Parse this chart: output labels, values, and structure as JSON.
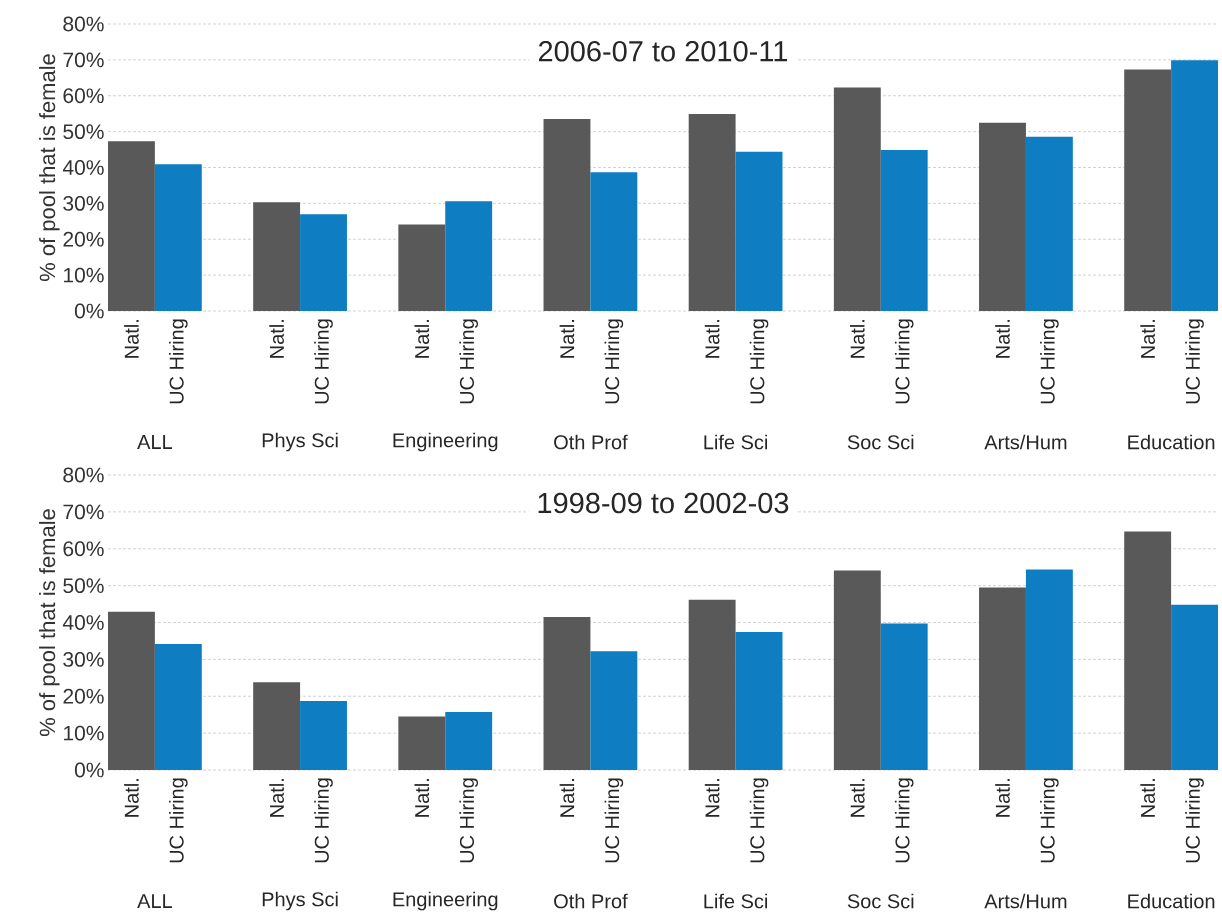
{
  "chart_data": [
    {
      "type": "bar",
      "title": "2006-07 to 2010-11",
      "ylabel": "% of pool that is female",
      "categories": [
        "ALL",
        "Phys Sci",
        "Engineering",
        "Oth Prof",
        "Life Sci",
        "Soc Sci",
        "Arts/Hum",
        "Education"
      ],
      "series": [
        {
          "name": "Natl.",
          "color": "#595959",
          "values": [
            47.3,
            30.3,
            24.1,
            53.5,
            54.9,
            62.3,
            52.5,
            67.3
          ]
        },
        {
          "name": "UC Hiring",
          "color": "#0e7dc2",
          "values": [
            40.9,
            27.0,
            30.6,
            38.7,
            44.4,
            44.9,
            48.6,
            69.9
          ]
        }
      ],
      "ylim": [
        0,
        80
      ],
      "yticks": [
        {
          "value": 0,
          "label": "0%"
        },
        {
          "value": 10,
          "label": "10%"
        },
        {
          "value": 20,
          "label": "20%"
        },
        {
          "value": 30,
          "label": "30%"
        },
        {
          "value": 40,
          "label": "40%"
        },
        {
          "value": 50,
          "label": "50%"
        },
        {
          "value": 60,
          "label": "60%"
        },
        {
          "value": 70,
          "label": "70%"
        },
        {
          "value": 80,
          "label": "80%"
        }
      ],
      "grid": "y"
    },
    {
      "type": "bar",
      "title": "1998-09 to 2002-03",
      "ylabel": "% of pool that is female",
      "categories": [
        "ALL",
        "Phys Sci",
        "Engineering",
        "Oth Prof",
        "Life Sci",
        "Soc Sci",
        "Arts/Hum",
        "Education"
      ],
      "series": [
        {
          "name": "Natl.",
          "color": "#595959",
          "values": [
            42.9,
            23.8,
            14.5,
            41.5,
            46.2,
            54.1,
            49.5,
            64.7
          ]
        },
        {
          "name": "UC Hiring",
          "color": "#0e7dc2",
          "values": [
            34.2,
            18.7,
            15.7,
            32.2,
            37.4,
            39.7,
            54.4,
            44.8
          ]
        }
      ],
      "ylim": [
        0,
        80
      ],
      "yticks": [
        {
          "value": 0,
          "label": "0%"
        },
        {
          "value": 10,
          "label": "10%"
        },
        {
          "value": 20,
          "label": "20%"
        },
        {
          "value": 30,
          "label": "30%"
        },
        {
          "value": 40,
          "label": "40%"
        },
        {
          "value": 50,
          "label": "50%"
        },
        {
          "value": 60,
          "label": "60%"
        },
        {
          "value": 70,
          "label": "70%"
        },
        {
          "value": 80,
          "label": "80%"
        }
      ],
      "grid": "y"
    }
  ]
}
